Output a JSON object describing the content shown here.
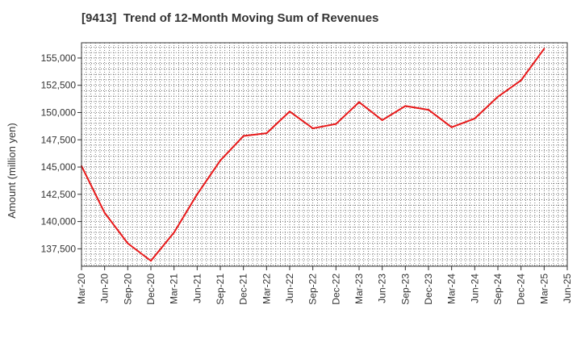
{
  "chart_data": {
    "type": "line",
    "title": "[9413]  Trend of 12-Month Moving Sum of Revenues",
    "xlabel": "",
    "ylabel": "Amount (million yen)",
    "x_tick_labels": [
      "Mar-20",
      "Jun-20",
      "Sep-20",
      "Dec-20",
      "Mar-21",
      "Jun-21",
      "Sep-21",
      "Dec-21",
      "Mar-22",
      "Jun-22",
      "Sep-22",
      "Dec-22",
      "Mar-23",
      "Jun-23",
      "Sep-23",
      "Dec-23",
      "Mar-24",
      "Jun-24",
      "Sep-24",
      "Dec-24",
      "Mar-25",
      "Jun-25"
    ],
    "y_ticks": [
      137500,
      140000,
      142500,
      145000,
      147500,
      150000,
      152500,
      155000
    ],
    "y_tick_labels": [
      "137,500",
      "140,000",
      "142,500",
      "145,000",
      "147,500",
      "150,000",
      "152,500",
      "155,000"
    ],
    "ylim": [
      135900,
      156400
    ],
    "grid": true,
    "series": [
      {
        "color": "#e8191a",
        "x": [
          "Mar-20",
          "Jun-20",
          "Sep-20",
          "Dec-20",
          "Mar-21",
          "Jun-21",
          "Sep-21",
          "Dec-21",
          "Mar-22",
          "Jun-22",
          "Sep-22",
          "Dec-22",
          "Mar-23",
          "Jun-23",
          "Sep-23",
          "Dec-23",
          "Mar-24",
          "Jun-24",
          "Sep-24",
          "Dec-24",
          "Mar-25"
        ],
        "values": [
          145100,
          140800,
          138000,
          136400,
          139000,
          142500,
          145600,
          147850,
          148100,
          150100,
          148550,
          148950,
          150950,
          149300,
          150600,
          150250,
          148650,
          149450,
          151450,
          152950,
          155850
        ]
      }
    ]
  }
}
